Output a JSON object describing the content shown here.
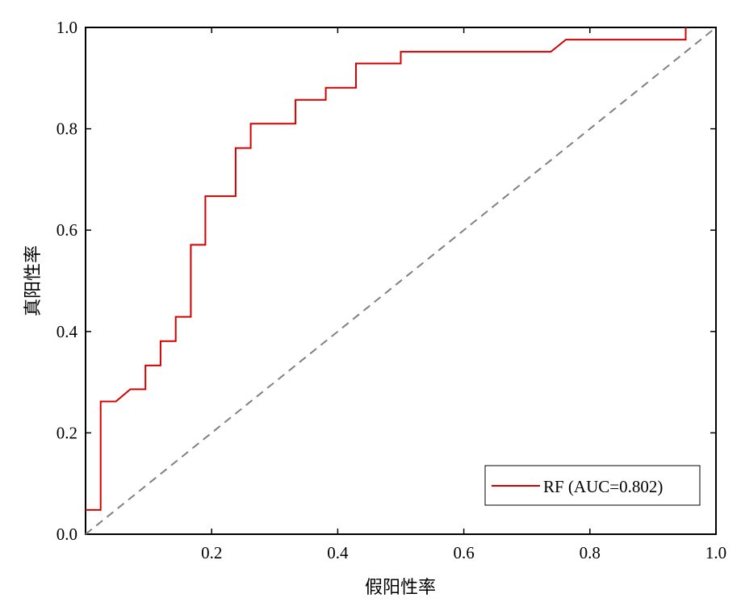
{
  "chart_data": {
    "type": "line",
    "title": "",
    "xlabel": "假阳性率",
    "ylabel": "真阳性率",
    "xlim": [
      0,
      1.0
    ],
    "ylim": [
      0,
      1.0
    ],
    "x_ticks": [
      0.2,
      0.4,
      0.6,
      0.8,
      1.0
    ],
    "x_tick_labels": [
      "0.2",
      "0.4",
      "0.6",
      "0.8",
      "1.0"
    ],
    "y_ticks": [
      0.0,
      0.2,
      0.4,
      0.6,
      0.8,
      1.0
    ],
    "y_tick_labels": [
      "0.0",
      "0.2",
      "0.4",
      "0.6",
      "0.8",
      "1.0"
    ],
    "grid": false,
    "legend_position": "bottom-right",
    "series": [
      {
        "name": "RF (AUC=0.802)",
        "color": "#d40000",
        "style": "solid",
        "x": [
          0.0,
          0.024,
          0.024,
          0.048,
          0.071,
          0.095,
          0.095,
          0.119,
          0.119,
          0.143,
          0.143,
          0.167,
          0.167,
          0.19,
          0.19,
          0.238,
          0.238,
          0.262,
          0.262,
          0.333,
          0.333,
          0.381,
          0.381,
          0.429,
          0.429,
          0.5,
          0.5,
          0.738,
          0.762,
          0.952,
          0.952
        ],
        "y": [
          0.048,
          0.048,
          0.262,
          0.262,
          0.286,
          0.286,
          0.333,
          0.333,
          0.381,
          0.381,
          0.429,
          0.429,
          0.571,
          0.571,
          0.667,
          0.667,
          0.762,
          0.762,
          0.81,
          0.81,
          0.857,
          0.857,
          0.881,
          0.881,
          0.929,
          0.929,
          0.952,
          0.952,
          0.976,
          0.976,
          1.0
        ]
      },
      {
        "name": "",
        "color": "#808080",
        "style": "dashed",
        "x": [
          0,
          1
        ],
        "y": [
          0,
          1
        ]
      }
    ]
  }
}
